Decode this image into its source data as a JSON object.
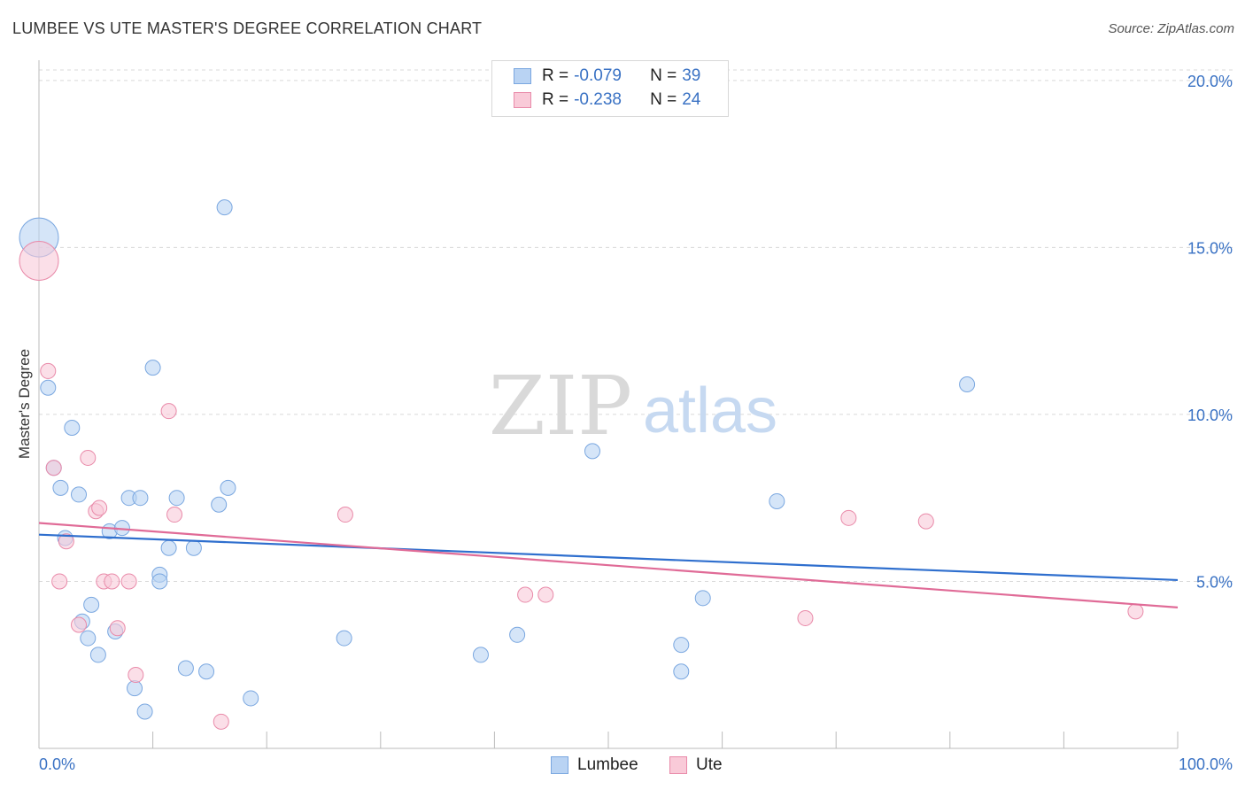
{
  "title": "LUMBEE VS UTE MASTER'S DEGREE CORRELATION CHART",
  "source": "Source: ZipAtlas.com",
  "watermark": {
    "zip": "ZIP",
    "atlas": "atlas"
  },
  "legend": {
    "r_label": "R = ",
    "n_label": "N = ",
    "items": [
      {
        "r": "-0.079",
        "n": "39",
        "fill": "#b9d3f3",
        "stroke": "#7aa7e0"
      },
      {
        "r": "-0.238",
        "n": "24",
        "fill": "#f9cad8",
        "stroke": "#e98aa9"
      }
    ]
  },
  "colors": {
    "lumbee_line": "#2f6fce",
    "ute_line": "#e06b97",
    "tick_text": "#3a72c4",
    "grid": "#d9d9d9"
  },
  "chart_data": {
    "type": "scatter",
    "title": "LUMBEE VS UTE MASTER'S DEGREE CORRELATION CHART",
    "xlabel": "",
    "ylabel": "Master's Degree",
    "xlim": [
      0,
      100
    ],
    "ylim": [
      0,
      20.5
    ],
    "x_tick_labels": [
      "0.0%",
      "100.0%"
    ],
    "y_ticks": [
      5,
      10,
      15,
      20
    ],
    "y_tick_labels": [
      "5.0%",
      "10.0%",
      "15.0%",
      "20.0%"
    ],
    "grid": true,
    "legend_position": "top-center",
    "series": [
      {
        "name": "Lumbee",
        "color": "#7aa7e0",
        "fill": "#b9d3f3",
        "trend": {
          "x": [
            0,
            100
          ],
          "y": [
            6.4,
            5.04
          ]
        },
        "points": [
          {
            "x": 0.0,
            "y": 15.3,
            "big": true
          },
          {
            "x": 0.8,
            "y": 10.8
          },
          {
            "x": 1.3,
            "y": 8.4
          },
          {
            "x": 1.9,
            "y": 7.8
          },
          {
            "x": 2.3,
            "y": 6.3
          },
          {
            "x": 2.9,
            "y": 9.6
          },
          {
            "x": 3.5,
            "y": 7.6
          },
          {
            "x": 3.8,
            "y": 3.8
          },
          {
            "x": 4.3,
            "y": 3.3
          },
          {
            "x": 4.6,
            "y": 4.3
          },
          {
            "x": 5.2,
            "y": 2.8
          },
          {
            "x": 6.2,
            "y": 6.5
          },
          {
            "x": 6.7,
            "y": 3.5
          },
          {
            "x": 7.3,
            "y": 6.6
          },
          {
            "x": 7.9,
            "y": 7.5
          },
          {
            "x": 8.4,
            "y": 1.8
          },
          {
            "x": 8.9,
            "y": 7.5
          },
          {
            "x": 9.3,
            "y": 1.1
          },
          {
            "x": 10.0,
            "y": 11.4
          },
          {
            "x": 10.6,
            "y": 5.2
          },
          {
            "x": 10.6,
            "y": 5.0
          },
          {
            "x": 11.4,
            "y": 6.0
          },
          {
            "x": 12.1,
            "y": 7.5
          },
          {
            "x": 12.9,
            "y": 2.4
          },
          {
            "x": 13.6,
            "y": 6.0
          },
          {
            "x": 14.7,
            "y": 2.3
          },
          {
            "x": 15.8,
            "y": 7.3
          },
          {
            "x": 16.3,
            "y": 16.2
          },
          {
            "x": 16.6,
            "y": 7.8
          },
          {
            "x": 18.6,
            "y": 1.5
          },
          {
            "x": 26.8,
            "y": 3.3
          },
          {
            "x": 38.8,
            "y": 2.8
          },
          {
            "x": 42.0,
            "y": 3.4
          },
          {
            "x": 48.6,
            "y": 8.9
          },
          {
            "x": 56.4,
            "y": 3.1
          },
          {
            "x": 56.4,
            "y": 2.3
          },
          {
            "x": 58.3,
            "y": 4.5
          },
          {
            "x": 64.8,
            "y": 7.4
          },
          {
            "x": 81.5,
            "y": 10.9
          }
        ]
      },
      {
        "name": "Ute",
        "color": "#e98aa9",
        "fill": "#f9cad8",
        "trend": {
          "x": [
            0,
            100
          ],
          "y": [
            6.75,
            4.22
          ]
        },
        "points": [
          {
            "x": 0.0,
            "y": 14.6,
            "big": true
          },
          {
            "x": 0.8,
            "y": 11.3
          },
          {
            "x": 1.3,
            "y": 8.4
          },
          {
            "x": 1.8,
            "y": 5.0
          },
          {
            "x": 2.4,
            "y": 6.2
          },
          {
            "x": 3.5,
            "y": 3.7
          },
          {
            "x": 4.3,
            "y": 8.7
          },
          {
            "x": 5.0,
            "y": 7.1
          },
          {
            "x": 5.3,
            "y": 7.2
          },
          {
            "x": 5.7,
            "y": 5.0
          },
          {
            "x": 6.4,
            "y": 5.0
          },
          {
            "x": 6.9,
            "y": 3.6
          },
          {
            "x": 7.9,
            "y": 5.0
          },
          {
            "x": 8.5,
            "y": 2.2
          },
          {
            "x": 11.4,
            "y": 10.1
          },
          {
            "x": 11.9,
            "y": 7.0
          },
          {
            "x": 16.0,
            "y": 0.8
          },
          {
            "x": 26.9,
            "y": 7.0
          },
          {
            "x": 42.7,
            "y": 4.6
          },
          {
            "x": 44.5,
            "y": 4.6
          },
          {
            "x": 67.3,
            "y": 3.9
          },
          {
            "x": 71.1,
            "y": 6.9
          },
          {
            "x": 77.9,
            "y": 6.8
          },
          {
            "x": 96.3,
            "y": 4.1
          }
        ]
      }
    ]
  }
}
